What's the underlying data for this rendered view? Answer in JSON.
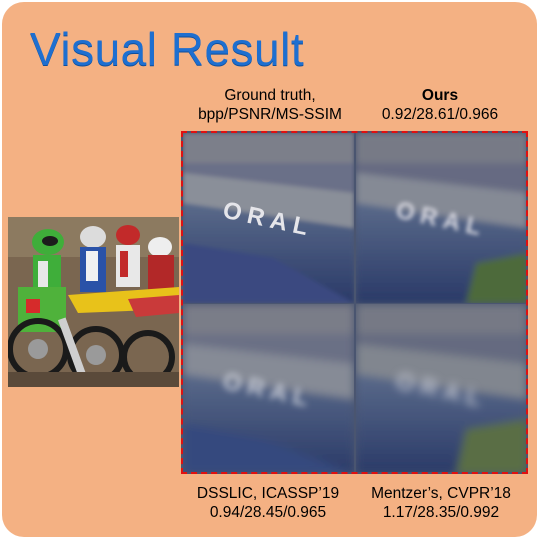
{
  "title": "Visual Result",
  "captions": {
    "ground_truth": {
      "line1": "Ground truth,",
      "line2": "bpp/PSNR/MS-SSIM"
    },
    "ours": {
      "line1": "Ours",
      "line2": "0.92/28.61/0.966"
    },
    "dsslic": {
      "line1": "DSSLIC, ICASSP’19",
      "line2": "0.94/28.45/0.965"
    },
    "mentzer": {
      "line1": "Mentzer’s, CVPR’18",
      "line2": "1.17/28.35/0.992"
    }
  },
  "crop_lettering": "ORAL",
  "colors": {
    "background": "#f4b183",
    "title": "#1e6fd0",
    "dashed_border": "#e01010"
  }
}
